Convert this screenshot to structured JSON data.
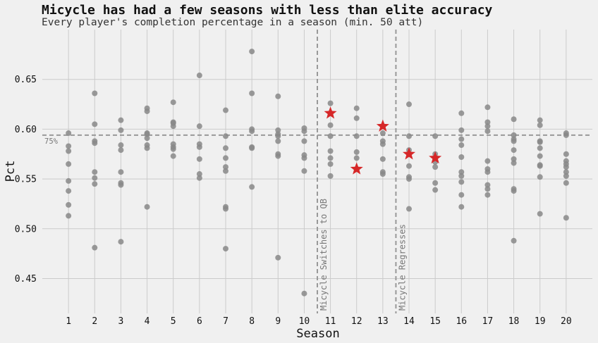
{
  "chart_data": {
    "type": "scatter",
    "title": "Micycle has had a few seasons with less than elite accuracy",
    "subtitle": "Every player's completion percentage in a season (min. 50 att)",
    "xlabel": "Season",
    "ylabel": "Pct",
    "xlim": [
      0,
      21
    ],
    "ylim": [
      0.415,
      0.7
    ],
    "x_ticks": [
      1,
      2,
      3,
      4,
      5,
      6,
      7,
      8,
      9,
      10,
      11,
      12,
      13,
      14,
      15,
      16,
      17,
      18,
      19,
      20
    ],
    "y_ticks": [
      0.45,
      0.5,
      0.55,
      0.6,
      0.65
    ],
    "y_tick_labels": [
      "0.45",
      "0.50",
      "0.55",
      "0.60",
      "0.65"
    ],
    "grid": true,
    "colors": {
      "background": "#f0f0f0",
      "points": "#888888",
      "highlight": "#d62728",
      "grid": "#cbcbcb",
      "reference": "#999999"
    },
    "reference_line": {
      "y": 0.594,
      "label": "75%"
    },
    "annotations": [
      {
        "x": 10.5,
        "label": "Micycle Switches to QB"
      },
      {
        "x": 13.5,
        "label": "Micycle Regresses"
      }
    ],
    "series": [
      {
        "points": [
          [
            1,
            0.596
          ],
          [
            1,
            0.583
          ],
          [
            1,
            0.578
          ],
          [
            1,
            0.565
          ],
          [
            1,
            0.548
          ],
          [
            1,
            0.538
          ],
          [
            1,
            0.524
          ],
          [
            1,
            0.513
          ],
          [
            2,
            0.636
          ],
          [
            2,
            0.605
          ],
          [
            2,
            0.588
          ],
          [
            2,
            0.586
          ],
          [
            2,
            0.557
          ],
          [
            2,
            0.551
          ],
          [
            2,
            0.545
          ],
          [
            2,
            0.481
          ],
          [
            3,
            0.609
          ],
          [
            3,
            0.599
          ],
          [
            3,
            0.584
          ],
          [
            3,
            0.579
          ],
          [
            3,
            0.557
          ],
          [
            3,
            0.546
          ],
          [
            3,
            0.544
          ],
          [
            3,
            0.487
          ],
          [
            4,
            0.621
          ],
          [
            4,
            0.618
          ],
          [
            4,
            0.596
          ],
          [
            4,
            0.595
          ],
          [
            4,
            0.591
          ],
          [
            4,
            0.584
          ],
          [
            4,
            0.581
          ],
          [
            4,
            0.522
          ],
          [
            5,
            0.627
          ],
          [
            5,
            0.607
          ],
          [
            5,
            0.606
          ],
          [
            5,
            0.603
          ],
          [
            5,
            0.585
          ],
          [
            5,
            0.582
          ],
          [
            5,
            0.58
          ],
          [
            5,
            0.573
          ],
          [
            6,
            0.654
          ],
          [
            6,
            0.603
          ],
          [
            6,
            0.585
          ],
          [
            6,
            0.582
          ],
          [
            6,
            0.57
          ],
          [
            6,
            0.555
          ],
          [
            6,
            0.551
          ],
          [
            7,
            0.619
          ],
          [
            7,
            0.593
          ],
          [
            7,
            0.581
          ],
          [
            7,
            0.571
          ],
          [
            7,
            0.562
          ],
          [
            7,
            0.558
          ],
          [
            7,
            0.522
          ],
          [
            7,
            0.52
          ],
          [
            7,
            0.48
          ],
          [
            8,
            0.678
          ],
          [
            8,
            0.636
          ],
          [
            8,
            0.6
          ],
          [
            8,
            0.598
          ],
          [
            8,
            0.582
          ],
          [
            8,
            0.581
          ],
          [
            8,
            0.542
          ],
          [
            9,
            0.633
          ],
          [
            9,
            0.599
          ],
          [
            9,
            0.595
          ],
          [
            9,
            0.593
          ],
          [
            9,
            0.588
          ],
          [
            9,
            0.575
          ],
          [
            9,
            0.573
          ],
          [
            9,
            0.471
          ],
          [
            10,
            0.601
          ],
          [
            10,
            0.598
          ],
          [
            10,
            0.588
          ],
          [
            10,
            0.574
          ],
          [
            10,
            0.571
          ],
          [
            10,
            0.558
          ],
          [
            10,
            0.435
          ],
          [
            11,
            0.626
          ],
          [
            11,
            0.604
          ],
          [
            11,
            0.593
          ],
          [
            11,
            0.578
          ],
          [
            11,
            0.571
          ],
          [
            11,
            0.565
          ],
          [
            11,
            0.553
          ],
          [
            12,
            0.621
          ],
          [
            12,
            0.611
          ],
          [
            12,
            0.593
          ],
          [
            12,
            0.577
          ],
          [
            12,
            0.571
          ],
          [
            13,
            0.596
          ],
          [
            13,
            0.588
          ],
          [
            13,
            0.585
          ],
          [
            13,
            0.57
          ],
          [
            13,
            0.557
          ],
          [
            13,
            0.555
          ],
          [
            14,
            0.625
          ],
          [
            14,
            0.593
          ],
          [
            14,
            0.579
          ],
          [
            14,
            0.563
          ],
          [
            14,
            0.552
          ],
          [
            14,
            0.55
          ],
          [
            14,
            0.52
          ],
          [
            15,
            0.593
          ],
          [
            15,
            0.575
          ],
          [
            15,
            0.567
          ],
          [
            15,
            0.562
          ],
          [
            15,
            0.546
          ],
          [
            15,
            0.539
          ],
          [
            16,
            0.616
          ],
          [
            16,
            0.599
          ],
          [
            16,
            0.59
          ],
          [
            16,
            0.584
          ],
          [
            16,
            0.572
          ],
          [
            16,
            0.557
          ],
          [
            16,
            0.553
          ],
          [
            16,
            0.547
          ],
          [
            16,
            0.534
          ],
          [
            16,
            0.522
          ],
          [
            17,
            0.622
          ],
          [
            17,
            0.607
          ],
          [
            17,
            0.603
          ],
          [
            17,
            0.598
          ],
          [
            17,
            0.568
          ],
          [
            17,
            0.56
          ],
          [
            17,
            0.557
          ],
          [
            17,
            0.544
          ],
          [
            17,
            0.54
          ],
          [
            17,
            0.534
          ],
          [
            18,
            0.61
          ],
          [
            18,
            0.594
          ],
          [
            18,
            0.59
          ],
          [
            18,
            0.588
          ],
          [
            18,
            0.579
          ],
          [
            18,
            0.57
          ],
          [
            18,
            0.566
          ],
          [
            18,
            0.54
          ],
          [
            18,
            0.538
          ],
          [
            18,
            0.488
          ],
          [
            19,
            0.609
          ],
          [
            19,
            0.604
          ],
          [
            19,
            0.588
          ],
          [
            19,
            0.587
          ],
          [
            19,
            0.581
          ],
          [
            19,
            0.573
          ],
          [
            19,
            0.564
          ],
          [
            19,
            0.563
          ],
          [
            19,
            0.552
          ],
          [
            19,
            0.515
          ],
          [
            20,
            0.596
          ],
          [
            20,
            0.594
          ],
          [
            20,
            0.575
          ],
          [
            20,
            0.568
          ],
          [
            20,
            0.565
          ],
          [
            20,
            0.562
          ],
          [
            20,
            0.557
          ],
          [
            20,
            0.553
          ],
          [
            20,
            0.546
          ],
          [
            20,
            0.511
          ]
        ]
      },
      {
        "marker": "star",
        "points": [
          [
            11,
            0.616
          ],
          [
            12,
            0.56
          ],
          [
            13,
            0.603
          ],
          [
            14,
            0.575
          ],
          [
            15,
            0.571
          ]
        ]
      }
    ]
  }
}
